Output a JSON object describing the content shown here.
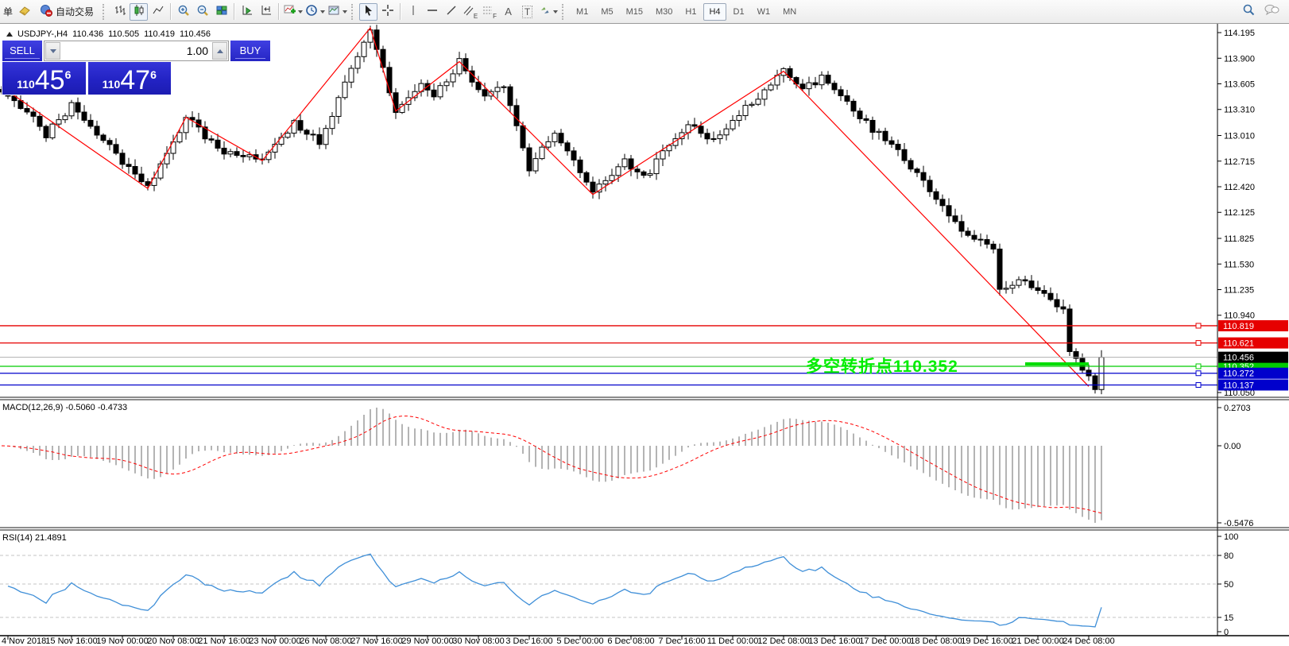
{
  "toolbar": {
    "left_label": "单",
    "autotrading_label": "自动交易",
    "glyphs": {
      "channel": "E",
      "fibo": "F",
      "text_tool": "A",
      "label_tool": "T"
    },
    "timeframes": [
      {
        "label": "M1"
      },
      {
        "label": "M5"
      },
      {
        "label": "M15"
      },
      {
        "label": "M30"
      },
      {
        "label": "H1"
      },
      {
        "label": "H4",
        "active": true
      },
      {
        "label": "D1"
      },
      {
        "label": "W1"
      },
      {
        "label": "MN"
      }
    ]
  },
  "chart": {
    "title": {
      "symbol_period": "USDJPY-,H4",
      "open": "110.436",
      "high": "110.505",
      "low": "110.419",
      "close": "110.456"
    },
    "trade_panel": {
      "sell_label": "SELL",
      "buy_label": "BUY",
      "volume": "1.00",
      "sell_big": "110",
      "sell_main": "45",
      "sell_sup": "6",
      "buy_big": "110",
      "buy_main": "47",
      "buy_sup": "6"
    },
    "annotation": {
      "text": "多空转折点110.352",
      "color": "#00ee00"
    }
  },
  "macd": {
    "label": "MACD(12,26,9)",
    "value_main": "-0.5060",
    "value_signal": "-0.4733"
  },
  "rsi": {
    "label": "RSI(14)",
    "value": "21.4891"
  },
  "chart_data": {
    "type": "candlestick",
    "symbol": "USDJPY",
    "period": "H4",
    "ohlc_current": {
      "open": 110.436,
      "high": 110.505,
      "low": 110.419,
      "close": 110.456
    },
    "bar_count": 174,
    "price_axis": {
      "pane_top_price": 114.296,
      "pane_bottom_price": 109.995,
      "ticks": [
        114.195,
        113.9,
        113.605,
        113.31,
        113.01,
        112.715,
        112.42,
        112.125,
        111.825,
        111.53,
        111.235,
        110.94,
        110.05
      ]
    },
    "candle_path": [
      [
        0,
        113.5
      ],
      [
        4,
        113.3
      ],
      [
        7,
        113.02
      ],
      [
        11,
        113.35
      ],
      [
        16,
        112.95
      ],
      [
        23,
        112.4
      ],
      [
        29,
        113.22
      ],
      [
        35,
        112.8
      ],
      [
        41,
        112.72
      ],
      [
        46,
        113.15
      ],
      [
        50,
        112.95
      ],
      [
        58,
        114.25
      ],
      [
        62,
        113.29
      ],
      [
        66,
        113.62
      ],
      [
        68,
        113.45
      ],
      [
        72,
        113.86
      ],
      [
        76,
        113.42
      ],
      [
        79,
        113.58
      ],
      [
        83,
        112.62
      ],
      [
        87,
        113.05
      ],
      [
        93,
        112.33
      ],
      [
        98,
        112.72
      ],
      [
        101,
        112.52
      ],
      [
        108,
        113.15
      ],
      [
        112,
        112.95
      ],
      [
        118,
        113.4
      ],
      [
        123,
        113.75
      ],
      [
        126,
        113.52
      ],
      [
        129,
        113.68
      ],
      [
        134,
        113.28
      ],
      [
        140,
        112.9
      ],
      [
        145,
        112.48
      ],
      [
        152,
        111.82
      ],
      [
        156,
        111.72
      ],
      [
        157,
        111.22
      ],
      [
        160,
        111.38
      ],
      [
        163,
        111.22
      ],
      [
        166,
        111.05
      ],
      [
        167,
        110.98
      ],
      [
        168,
        110.48
      ],
      [
        170,
        110.32
      ],
      [
        172,
        110.1
      ],
      [
        173,
        110.456
      ]
    ],
    "zigzag": {
      "color": "#ff0000",
      "pivots": [
        [
          1,
          113.52
        ],
        [
          23,
          112.4
        ],
        [
          29,
          113.22
        ],
        [
          41,
          112.72
        ],
        [
          58,
          114.25
        ],
        [
          62,
          113.29
        ],
        [
          72,
          113.86
        ],
        [
          93,
          112.33
        ],
        [
          123,
          113.75
        ],
        [
          171,
          110.12
        ]
      ]
    },
    "horizontal_lines": [
      {
        "price": 110.819,
        "label": "110.819",
        "color": "#e60000"
      },
      {
        "price": 110.621,
        "label": "110.621",
        "color": "#e60000"
      },
      {
        "price": 110.352,
        "label": "110.352",
        "color": "#00cc00"
      },
      {
        "price": 110.272,
        "label": "110.272",
        "color": "#0000cc"
      },
      {
        "price": 110.137,
        "label": "110.137",
        "color": "#0000cc"
      }
    ],
    "current_price_line": {
      "price": 110.456,
      "label": "110.456",
      "line_color": "#b0b0b0",
      "label_bg": "#000000"
    },
    "green_segment": {
      "from_bar": 161,
      "to_bar": 171,
      "color": "#00dd00"
    },
    "time_axis": {
      "first_label": "4 Nov 2018",
      "labels": [
        "15 Nov 16:00",
        "19 Nov 00:00",
        "20 Nov 08:00",
        "21 Nov 16:00",
        "23 Nov 00:00",
        "26 Nov 08:00",
        "27 Nov 16:00",
        "29 Nov 00:00",
        "30 Nov 08:00",
        "3 Dec 16:00",
        "5 Dec 00:00",
        "6 Dec 08:00",
        "7 Dec 16:00",
        "11 Dec 00:00",
        "12 Dec 08:00",
        "13 Dec 16:00",
        "17 Dec 00:00",
        "18 Dec 08:00",
        "19 Dec 16:00",
        "21 Dec 00:00",
        "24 Dec 08:00"
      ]
    },
    "macd_pane": {
      "params": [
        12,
        26,
        9
      ],
      "current_main": -0.506,
      "current_signal": -0.4733,
      "axis_max": 0.2703,
      "axis_min": -0.5476,
      "axis_labels": [
        "0.2703",
        "0.00",
        "-0.5476"
      ],
      "histogram_color": "#b4b4b4",
      "signal_color": "#ff0000"
    },
    "rsi_pane": {
      "period": 14,
      "current": 21.4891,
      "axis_labels": [
        "100",
        "80",
        "50",
        "15",
        "0"
      ],
      "levels": [
        80,
        50,
        15
      ],
      "line_color": "#3f8fd8"
    }
  }
}
